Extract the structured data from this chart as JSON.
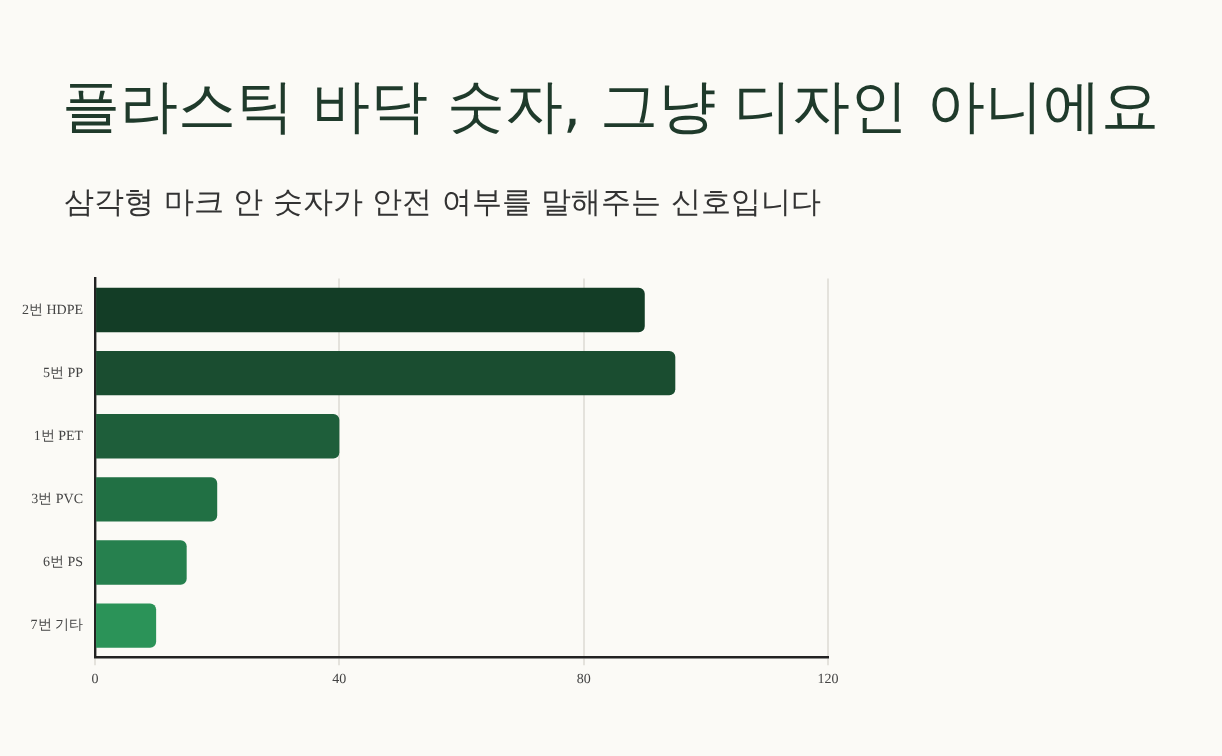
{
  "chart_data": {
    "type": "bar",
    "orientation": "horizontal",
    "title": "플라스틱 바닥 숫자, 그냥 디자인 아니에요",
    "subtitle": "삼각형 마크 안 숫자가 안전 여부를 말해주는 신호입니다",
    "categories": [
      "2번 HDPE",
      "5번 PP",
      "1번 PET",
      "3번 PVC",
      "6번 PS",
      "7번 기타"
    ],
    "values": [
      90,
      95,
      40,
      20,
      15,
      10
    ],
    "colors": [
      "#133d26",
      "#1a4d30",
      "#1e5e3a",
      "#217044",
      "#26804e",
      "#2b9358"
    ],
    "xlim": [
      0,
      120
    ],
    "xticks": [
      0,
      40,
      80,
      120
    ],
    "grid": "x"
  }
}
